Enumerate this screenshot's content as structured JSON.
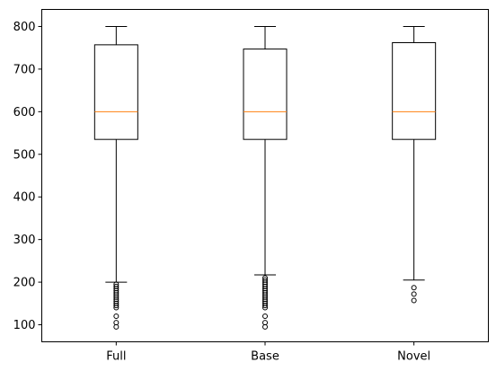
{
  "chart_data": {
    "type": "box",
    "title": "",
    "xlabel": "",
    "ylabel": "",
    "categories": [
      "Full",
      "Base",
      "Novel"
    ],
    "ylim": [
      60,
      840
    ],
    "yticks": [
      100,
      200,
      300,
      400,
      500,
      600,
      700,
      800
    ],
    "grid": false,
    "boxes": [
      {
        "label": "Full",
        "whisker_low": 200,
        "q1": 535,
        "median": 600,
        "q3": 757,
        "whisker_high": 800,
        "outliers": [
          95,
          105,
          120,
          140,
          145,
          150,
          155,
          160,
          165,
          170,
          175,
          180,
          185,
          190,
          195
        ]
      },
      {
        "label": "Base",
        "whisker_low": 217,
        "q1": 535,
        "median": 600,
        "q3": 747,
        "whisker_high": 800,
        "outliers": [
          95,
          105,
          120,
          140,
          145,
          150,
          155,
          160,
          165,
          170,
          175,
          180,
          185,
          190,
          195,
          200,
          205,
          210
        ]
      },
      {
        "label": "Novel",
        "whisker_low": 205,
        "q1": 535,
        "median": 600,
        "q3": 762,
        "whisker_high": 800,
        "outliers": [
          157,
          172,
          187
        ]
      }
    ],
    "colors": {
      "box": "#000000",
      "median": "#ff7f0e",
      "outlier": "#000000",
      "axis": "#000000"
    }
  }
}
